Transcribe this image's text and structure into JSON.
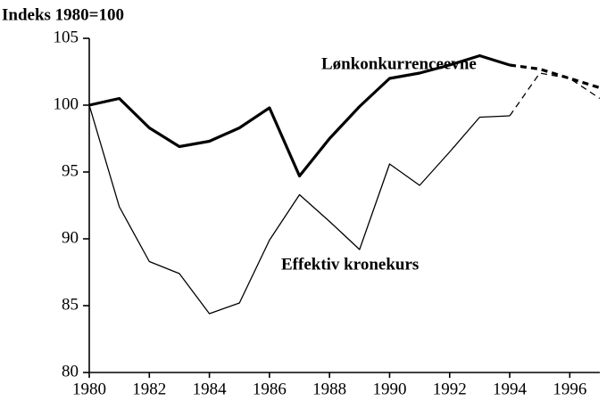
{
  "chart_data": {
    "type": "line",
    "y_label": "Indeks 1980=100",
    "x": [
      1980,
      1981,
      1982,
      1983,
      1984,
      1985,
      1986,
      1987,
      1988,
      1989,
      1990,
      1991,
      1992,
      1993,
      1994,
      1995,
      1996,
      1997
    ],
    "series": [
      {
        "name": "Lønkonkurrenceevne",
        "color": "#000000",
        "values": [
          100,
          100.5,
          98.3,
          96.9,
          97.3,
          98.3,
          99.8,
          94.7,
          97.5,
          99.9,
          102,
          102.4,
          103,
          103.7,
          103,
          102.7,
          102,
          101.3
        ]
      },
      {
        "name": "Effektiv kronekurs",
        "color": "#000000",
        "values": [
          100,
          92.4,
          88.3,
          87.4,
          84.4,
          85.2,
          89.9,
          93.3,
          91.3,
          89.2,
          95.6,
          94,
          96.5,
          99.1,
          99.2,
          102.4,
          102,
          100.5
        ]
      }
    ],
    "dashed_from": 1994,
    "xlim": [
      1980,
      1997
    ],
    "xticks": [
      1980,
      1982,
      1984,
      1986,
      1988,
      1990,
      1992,
      1994,
      1996
    ],
    "ylim": [
      80,
      105
    ],
    "yticks": [
      80,
      85,
      90,
      95,
      100,
      105
    ],
    "grid": false
  }
}
